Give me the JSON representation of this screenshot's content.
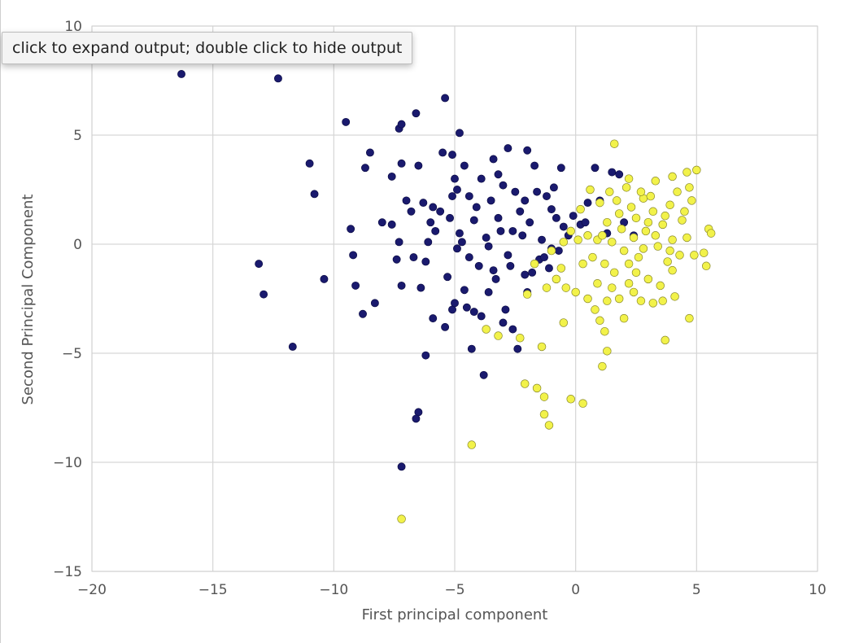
{
  "tooltip": {
    "text": "click to expand output; double click to hide output"
  },
  "colors": {
    "class_a": "#1a1a6e",
    "class_b": "#f2f24a",
    "grid": "#d6d6d6",
    "text": "#555555"
  },
  "chart_data": {
    "type": "scatter",
    "title": "",
    "xlabel": "First principal component",
    "ylabel": "Second Principal Component",
    "xlim": [
      -20,
      10
    ],
    "ylim": [
      -15,
      10
    ],
    "xticks": [
      -20,
      -15,
      -10,
      -5,
      0,
      5,
      10
    ],
    "xtick_labels": [
      "−20",
      "−15",
      "−10",
      "−5",
      "0",
      "5",
      "10"
    ],
    "yticks": [
      -15,
      -10,
      -5,
      0,
      5,
      10
    ],
    "ytick_labels": [
      "−15",
      "−10",
      "−5",
      "0",
      "5",
      "10"
    ],
    "grid": true,
    "legend": "none",
    "series": [
      {
        "color": "#1a1a6e",
        "points": [
          [
            -16.3,
            7.8
          ],
          [
            -12.3,
            7.6
          ],
          [
            -9.5,
            5.6
          ],
          [
            -7.3,
            5.3
          ],
          [
            -7.2,
            5.5
          ],
          [
            -6.6,
            6.0
          ],
          [
            -5.4,
            6.7
          ],
          [
            -4.8,
            5.1
          ],
          [
            -11.0,
            3.7
          ],
          [
            -10.8,
            2.3
          ],
          [
            -8.5,
            4.2
          ],
          [
            -8.7,
            3.5
          ],
          [
            -7.6,
            3.1
          ],
          [
            -7.2,
            3.7
          ],
          [
            -6.5,
            3.6
          ],
          [
            -7.0,
            2.0
          ],
          [
            -6.3,
            1.9
          ],
          [
            -5.9,
            1.7
          ],
          [
            -5.5,
            4.2
          ],
          [
            -5.1,
            4.1
          ],
          [
            -4.9,
            2.5
          ],
          [
            -4.6,
            3.6
          ],
          [
            -3.4,
            3.9
          ],
          [
            -2.8,
            4.4
          ],
          [
            -2.0,
            4.3
          ],
          [
            -1.6,
            2.4
          ],
          [
            -1.2,
            2.2
          ],
          [
            -0.6,
            3.5
          ],
          [
            0.8,
            3.5
          ],
          [
            1.8,
            3.2
          ],
          [
            -5.0,
            3.0
          ],
          [
            -4.4,
            2.2
          ],
          [
            -3.9,
            3.0
          ],
          [
            -3.5,
            2.0
          ],
          [
            -3.2,
            1.2
          ],
          [
            -2.5,
            2.4
          ],
          [
            -2.1,
            2.0
          ],
          [
            -1.0,
            1.6
          ],
          [
            -0.8,
            1.2
          ],
          [
            -0.3,
            0.4
          ],
          [
            0.5,
            1.9
          ],
          [
            1.0,
            2.0
          ],
          [
            -13.1,
            -0.9
          ],
          [
            -12.9,
            -2.3
          ],
          [
            -11.7,
            -4.7
          ],
          [
            -10.4,
            -1.6
          ],
          [
            -9.3,
            0.7
          ],
          [
            -9.2,
            -0.5
          ],
          [
            -9.1,
            -1.9
          ],
          [
            -8.8,
            -3.2
          ],
          [
            -8.3,
            -2.7
          ],
          [
            -7.3,
            0.1
          ],
          [
            -7.2,
            -1.9
          ],
          [
            -7.6,
            0.9
          ],
          [
            -6.7,
            -0.6
          ],
          [
            -6.2,
            -0.8
          ],
          [
            -6.1,
            0.1
          ],
          [
            -6.4,
            -2.0
          ],
          [
            -5.9,
            -3.4
          ],
          [
            -5.4,
            -3.8
          ],
          [
            -5.1,
            -3.0
          ],
          [
            -4.5,
            -2.9
          ],
          [
            -6.2,
            -5.1
          ],
          [
            -4.3,
            -4.8
          ],
          [
            -3.8,
            -6.0
          ],
          [
            -6.5,
            -7.7
          ],
          [
            -6.6,
            -8.0
          ],
          [
            -7.2,
            -10.2
          ],
          [
            -5.2,
            1.2
          ],
          [
            -4.8,
            0.5
          ],
          [
            -4.4,
            -0.6
          ],
          [
            -4.0,
            -1.0
          ],
          [
            -3.6,
            -2.2
          ],
          [
            -3.3,
            -1.6
          ],
          [
            -3.0,
            -3.6
          ],
          [
            -2.7,
            -1.0
          ],
          [
            -2.4,
            -4.8
          ],
          [
            -2.0,
            -2.2
          ],
          [
            -1.8,
            -1.3
          ],
          [
            -1.5,
            -0.7
          ],
          [
            -1.0,
            -0.2
          ],
          [
            -0.5,
            0.8
          ],
          [
            -0.1,
            1.3
          ],
          [
            -5.6,
            1.5
          ],
          [
            -3.7,
            0.3
          ],
          [
            -2.6,
            0.6
          ],
          [
            -1.9,
            1.0
          ],
          [
            -1.3,
            -0.6
          ],
          [
            -0.7,
            -0.3
          ],
          [
            0.2,
            0.9
          ],
          [
            0.4,
            1.0
          ],
          [
            1.3,
            0.5
          ],
          [
            2.0,
            1.0
          ],
          [
            2.4,
            0.4
          ],
          [
            1.5,
            3.3
          ],
          [
            -4.9,
            -0.2
          ],
          [
            -4.2,
            1.1
          ],
          [
            -3.1,
            0.6
          ],
          [
            -2.2,
            0.4
          ],
          [
            -5.3,
            -1.5
          ],
          [
            -4.6,
            -2.1
          ],
          [
            -3.9,
            -3.3
          ],
          [
            -2.9,
            -3.0
          ],
          [
            -2.6,
            -3.9
          ],
          [
            -3.4,
            -1.2
          ],
          [
            -5.8,
            0.6
          ],
          [
            -6.8,
            1.5
          ],
          [
            -7.4,
            -0.7
          ],
          [
            -8.0,
            1.0
          ],
          [
            -5.1,
            2.2
          ],
          [
            -4.1,
            1.7
          ],
          [
            -3.0,
            2.7
          ],
          [
            -2.3,
            1.5
          ],
          [
            -1.4,
            0.2
          ],
          [
            -0.9,
            2.6
          ],
          [
            -1.7,
            3.6
          ],
          [
            -4.7,
            0.1
          ],
          [
            -3.6,
            -0.1
          ],
          [
            -2.8,
            -0.5
          ],
          [
            -2.1,
            -1.4
          ],
          [
            -4.2,
            -3.1
          ],
          [
            -5.0,
            -2.7
          ],
          [
            -6.0,
            1.0
          ],
          [
            -3.2,
            3.2
          ],
          [
            -1.1,
            -1.1
          ]
        ]
      },
      {
        "color": "#f2f24a",
        "points": [
          [
            1.6,
            4.6
          ],
          [
            3.3,
            2.9
          ],
          [
            4.0,
            3.1
          ],
          [
            4.6,
            3.3
          ],
          [
            5.0,
            3.4
          ],
          [
            4.7,
            2.6
          ],
          [
            5.5,
            0.7
          ],
          [
            5.6,
            0.5
          ],
          [
            5.3,
            -0.4
          ],
          [
            5.4,
            -1.0
          ],
          [
            4.7,
            -3.4
          ],
          [
            3.7,
            -4.4
          ],
          [
            1.2,
            -4.0
          ],
          [
            1.3,
            -4.9
          ],
          [
            1.0,
            -3.5
          ],
          [
            1.1,
            -5.6
          ],
          [
            -0.5,
            -3.6
          ],
          [
            -1.4,
            -4.7
          ],
          [
            -2.1,
            -6.4
          ],
          [
            -1.6,
            -6.6
          ],
          [
            -1.3,
            -7.0
          ],
          [
            -0.2,
            -7.1
          ],
          [
            0.3,
            -7.3
          ],
          [
            -1.3,
            -7.8
          ],
          [
            -1.1,
            -8.3
          ],
          [
            -4.3,
            -9.2
          ],
          [
            -7.2,
            -12.6
          ],
          [
            -3.7,
            -3.9
          ],
          [
            -3.2,
            -4.2
          ],
          [
            -2.3,
            -4.3
          ],
          [
            -0.8,
            -1.6
          ],
          [
            -0.4,
            -2.0
          ],
          [
            0.0,
            -2.2
          ],
          [
            0.5,
            -2.5
          ],
          [
            0.8,
            -3.0
          ],
          [
            1.5,
            -2.0
          ],
          [
            2.2,
            -1.8
          ],
          [
            2.7,
            -2.6
          ],
          [
            3.2,
            -2.7
          ],
          [
            3.6,
            -2.6
          ],
          [
            4.1,
            -2.4
          ],
          [
            0.5,
            0.4
          ],
          [
            0.9,
            0.2
          ],
          [
            1.3,
            1.0
          ],
          [
            1.8,
            1.4
          ],
          [
            2.3,
            1.7
          ],
          [
            2.8,
            2.1
          ],
          [
            3.2,
            1.5
          ],
          [
            3.6,
            0.9
          ],
          [
            4.0,
            0.2
          ],
          [
            4.3,
            -0.5
          ],
          [
            4.5,
            1.5
          ],
          [
            4.8,
            2.0
          ],
          [
            0.7,
            -0.6
          ],
          [
            1.2,
            -0.9
          ],
          [
            1.6,
            -1.3
          ],
          [
            2.0,
            -0.3
          ],
          [
            2.4,
            0.3
          ],
          [
            2.9,
            0.6
          ],
          [
            3.4,
            -0.1
          ],
          [
            3.8,
            -0.8
          ],
          [
            1.0,
            1.9
          ],
          [
            1.4,
            2.4
          ],
          [
            2.1,
            2.6
          ],
          [
            2.7,
            2.4
          ],
          [
            3.1,
            2.2
          ],
          [
            3.9,
            1.8
          ],
          [
            4.4,
            1.1
          ],
          [
            0.2,
            1.6
          ],
          [
            -0.2,
            0.6
          ],
          [
            0.3,
            -0.9
          ],
          [
            1.8,
            -2.5
          ],
          [
            2.5,
            -1.3
          ],
          [
            3.0,
            -1.6
          ],
          [
            3.5,
            -1.9
          ],
          [
            4.0,
            -1.2
          ],
          [
            4.9,
            -0.5
          ],
          [
            0.6,
            2.5
          ],
          [
            1.9,
            0.7
          ],
          [
            2.6,
            -0.6
          ],
          [
            3.3,
            0.4
          ],
          [
            3.7,
            1.3
          ],
          [
            4.2,
            2.4
          ],
          [
            1.1,
            0.4
          ],
          [
            1.5,
            0.1
          ],
          [
            2.2,
            -0.9
          ],
          [
            2.8,
            -0.2
          ],
          [
            3.0,
            1.0
          ],
          [
            0.9,
            -1.8
          ],
          [
            1.3,
            -2.6
          ],
          [
            2.0,
            -3.4
          ],
          [
            2.4,
            -2.2
          ],
          [
            -0.6,
            -1.1
          ],
          [
            -1.2,
            -2.0
          ],
          [
            -2.0,
            -2.3
          ],
          [
            -1.7,
            -0.9
          ],
          [
            -1.0,
            -0.3
          ],
          [
            -0.5,
            0.1
          ],
          [
            0.1,
            0.2
          ],
          [
            1.7,
            2.0
          ],
          [
            2.5,
            1.2
          ],
          [
            3.9,
            -0.3
          ],
          [
            4.6,
            0.3
          ],
          [
            2.2,
            3.0
          ]
        ]
      }
    ]
  }
}
